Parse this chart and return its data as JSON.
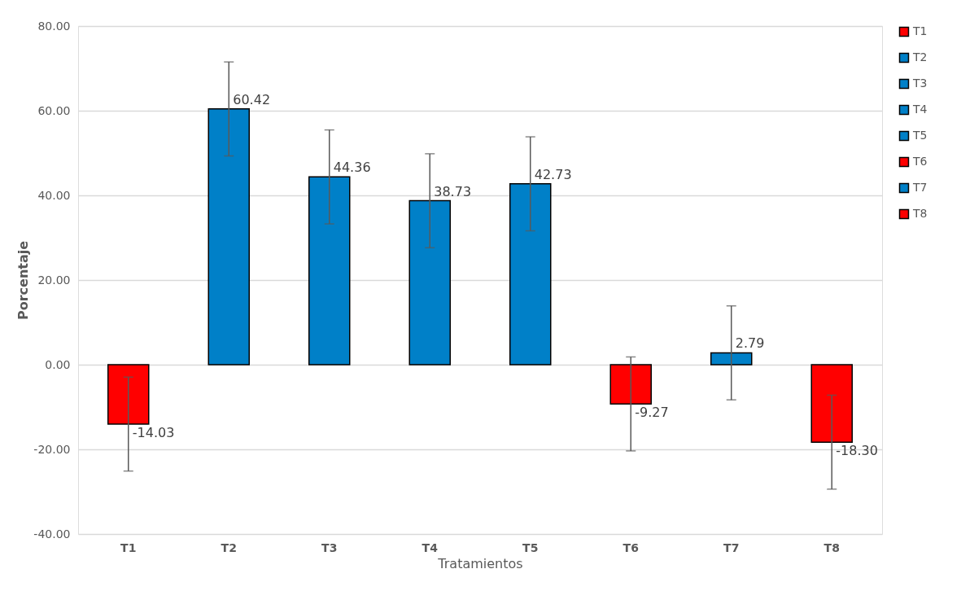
{
  "chart_data": {
    "type": "bar",
    "xlabel": "Tratamientos",
    "ylabel": "Porcentaje",
    "categories": [
      "T1",
      "T2",
      "T3",
      "T4",
      "T5",
      "T6",
      "T7",
      "T8"
    ],
    "series": [
      {
        "name": "T1",
        "color": "#ff0000",
        "values": [
          -14.03,
          null,
          null,
          null,
          null,
          null,
          null,
          null
        ],
        "errors": [
          11.1,
          null,
          null,
          null,
          null,
          null,
          null,
          null
        ],
        "value_labels": [
          "-14.03",
          null,
          null,
          null,
          null,
          null,
          null,
          null
        ]
      },
      {
        "name": "T2",
        "color": "#0080c8",
        "values": [
          null,
          60.42,
          null,
          null,
          null,
          null,
          null,
          null
        ],
        "errors": [
          null,
          11.1,
          null,
          null,
          null,
          null,
          null,
          null
        ],
        "value_labels": [
          null,
          "60.42",
          null,
          null,
          null,
          null,
          null,
          null
        ]
      },
      {
        "name": "T3",
        "color": "#0080c8",
        "values": [
          null,
          null,
          44.36,
          null,
          null,
          null,
          null,
          null
        ],
        "errors": [
          null,
          null,
          11.1,
          null,
          null,
          null,
          null,
          null
        ],
        "value_labels": [
          null,
          null,
          "44.36",
          null,
          null,
          null,
          null,
          null
        ]
      },
      {
        "name": "T4",
        "color": "#0080c8",
        "values": [
          null,
          null,
          null,
          38.73,
          null,
          null,
          null,
          null
        ],
        "errors": [
          null,
          null,
          null,
          11.1,
          null,
          null,
          null,
          null
        ],
        "value_labels": [
          null,
          null,
          null,
          "38.73",
          null,
          null,
          null,
          null
        ]
      },
      {
        "name": "T5",
        "color": "#0080c8",
        "values": [
          null,
          null,
          null,
          null,
          42.73,
          null,
          null,
          null
        ],
        "errors": [
          null,
          null,
          null,
          null,
          11.1,
          null,
          null,
          null
        ],
        "value_labels": [
          null,
          null,
          null,
          null,
          "42.73",
          null,
          null,
          null
        ]
      },
      {
        "name": "T6",
        "color": "#ff0000",
        "values": [
          null,
          null,
          null,
          null,
          null,
          -9.27,
          null,
          null
        ],
        "errors": [
          null,
          null,
          null,
          null,
          null,
          11.1,
          null,
          null
        ],
        "value_labels": [
          null,
          null,
          null,
          null,
          null,
          "-9.27",
          null,
          null
        ]
      },
      {
        "name": "T7",
        "color": "#0080c8",
        "values": [
          null,
          null,
          null,
          null,
          null,
          null,
          2.79,
          null
        ],
        "errors": [
          null,
          null,
          null,
          null,
          null,
          null,
          11.1,
          null
        ],
        "value_labels": [
          null,
          null,
          null,
          null,
          null,
          null,
          "2.79",
          null
        ]
      },
      {
        "name": "T8",
        "color": "#ff0000",
        "values": [
          null,
          null,
          null,
          null,
          null,
          null,
          null,
          -18.3
        ],
        "errors": [
          null,
          null,
          null,
          null,
          null,
          null,
          null,
          11.1
        ],
        "value_labels": [
          null,
          null,
          null,
          null,
          null,
          null,
          null,
          "-18.30"
        ]
      }
    ],
    "ylim": [
      -40,
      80
    ],
    "yticks": [
      {
        "value": -40,
        "label": "-40.00"
      },
      {
        "value": -20,
        "label": "-20.00"
      },
      {
        "value": 0,
        "label": "0.00"
      },
      {
        "value": 20,
        "label": "20.00"
      },
      {
        "value": 40,
        "label": "40.00"
      },
      {
        "value": 60,
        "label": "60.00"
      },
      {
        "value": 80,
        "label": "80.00"
      }
    ],
    "grid": "y",
    "legend": "right"
  }
}
